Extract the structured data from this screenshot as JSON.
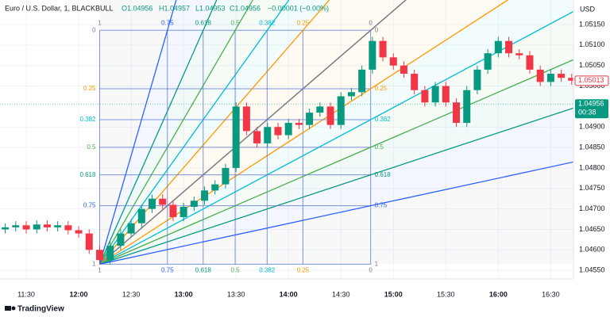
{
  "header": {
    "symbol": "Euro / U.S. Dollar, 1, BLACKBULL",
    "open": "O1.04956",
    "high": "H1.04957",
    "low": "L1.04953",
    "close": "C1.04956",
    "change": "−0.00001 (−0.00%)"
  },
  "footer": {
    "brand": "TradingView"
  },
  "chart_data": {
    "type": "candlestick",
    "currency": "USD",
    "grid": true,
    "up_color": "#089981",
    "down_color": "#f23645",
    "xlim": [
      675,
      1003
    ],
    "ylim": [
      1.04529,
      1.0521
    ],
    "xticks": [
      {
        "value": 690,
        "label": "11:30"
      },
      {
        "value": 720,
        "label": "12:00"
      },
      {
        "value": 750,
        "label": "12:30"
      },
      {
        "value": 780,
        "label": "13:00"
      },
      {
        "value": 810,
        "label": "13:30"
      },
      {
        "value": 840,
        "label": "14:00"
      },
      {
        "value": 870,
        "label": "14:30"
      },
      {
        "value": 900,
        "label": "15:00"
      },
      {
        "value": 930,
        "label": "15:30"
      },
      {
        "value": 960,
        "label": "16:00"
      },
      {
        "value": 990,
        "label": "16:30"
      }
    ],
    "yticks": [
      {
        "value": 1.0515,
        "label": "1.05150"
      },
      {
        "value": 1.051,
        "label": "1.05100"
      },
      {
        "value": 1.0505,
        "label": "1.05050"
      },
      {
        "value": 1.05,
        "label": "1.05000"
      },
      {
        "value": 1.049,
        "label": "1.04900"
      },
      {
        "value": 1.0485,
        "label": "1.04850"
      },
      {
        "value": 1.048,
        "label": "1.04800"
      },
      {
        "value": 1.0475,
        "label": "1.04750"
      },
      {
        "value": 1.047,
        "label": "1.04700"
      },
      {
        "value": 1.0465,
        "label": "1.04650"
      },
      {
        "value": 1.046,
        "label": "1.04600"
      },
      {
        "value": 1.0455,
        "label": "1.04550"
      }
    ],
    "x": [
      678,
      684,
      690,
      696,
      702,
      708,
      714,
      720,
      726,
      732,
      738,
      744,
      750,
      756,
      762,
      768,
      774,
      780,
      786,
      792,
      798,
      804,
      810,
      816,
      822,
      828,
      834,
      840,
      846,
      852,
      858,
      864,
      870,
      876,
      882,
      888,
      894,
      900,
      906,
      912,
      918,
      924,
      930,
      936,
      942,
      948,
      954,
      960,
      966,
      972,
      978,
      984,
      990,
      996,
      1002
    ],
    "open": [
      1.0465,
      1.04655,
      1.0466,
      1.0465,
      1.04662,
      1.04655,
      1.0466,
      1.04648,
      1.0464,
      1.046,
      1.04575,
      1.0461,
      1.0464,
      1.04665,
      1.047,
      1.04725,
      1.0471,
      1.0468,
      1.04705,
      1.0472,
      1.04745,
      1.0476,
      1.048,
      1.0495,
      1.0489,
      1.0486,
      1.049,
      1.0488,
      1.0491,
      1.04905,
      1.04935,
      1.0495,
      1.04905,
      1.04975,
      1.04985,
      1.0504,
      1.0511,
      1.0507,
      1.0505,
      1.0503,
      1.0499,
      1.0496,
      1.05,
      1.0496,
      1.0491,
      1.0499,
      1.0504,
      1.0508,
      1.0511,
      1.0508,
      1.05075,
      1.0504,
      1.0501,
      1.0503,
      1.0502
    ],
    "high": [
      1.04665,
      1.0467,
      1.0467,
      1.04672,
      1.04672,
      1.0467,
      1.0467,
      1.04658,
      1.0465,
      1.0461,
      1.0462,
      1.0465,
      1.04675,
      1.0471,
      1.04735,
      1.04735,
      1.0472,
      1.04715,
      1.0473,
      1.04755,
      1.0477,
      1.0481,
      1.0496,
      1.0496,
      1.049,
      1.0491,
      1.0491,
      1.0492,
      1.0492,
      1.04945,
      1.0496,
      1.0496,
      1.04985,
      1.04995,
      1.0505,
      1.0512,
      1.0512,
      1.0508,
      1.0506,
      1.0504,
      1.05,
      1.0501,
      1.0501,
      1.0497,
      1.05,
      1.0505,
      1.0509,
      1.0512,
      1.0512,
      1.0509,
      1.05085,
      1.0505,
      1.0504,
      1.0504,
      1.0503
    ],
    "low": [
      1.0464,
      1.04645,
      1.0464,
      1.0464,
      1.04645,
      1.04645,
      1.04638,
      1.0463,
      1.0459,
      1.04565,
      1.04565,
      1.046,
      1.0463,
      1.04655,
      1.0469,
      1.047,
      1.0467,
      1.0467,
      1.04695,
      1.0471,
      1.04735,
      1.0475,
      1.0479,
      1.0488,
      1.0485,
      1.0485,
      1.0487,
      1.0487,
      1.04895,
      1.04895,
      1.04925,
      1.04895,
      1.04895,
      1.04965,
      1.04975,
      1.0503,
      1.0506,
      1.0504,
      1.0502,
      1.0498,
      1.0495,
      1.0495,
      1.0495,
      1.049,
      1.049,
      1.0498,
      1.0503,
      1.0507,
      1.0507,
      1.05065,
      1.0503,
      1.05,
      1.05,
      1.0501,
      1.05003
    ],
    "close": [
      1.04655,
      1.0466,
      1.0465,
      1.04662,
      1.04655,
      1.0466,
      1.04648,
      1.0464,
      1.046,
      1.04575,
      1.0461,
      1.0464,
      1.04665,
      1.047,
      1.04725,
      1.0471,
      1.0468,
      1.04705,
      1.0472,
      1.04745,
      1.0476,
      1.048,
      1.0495,
      1.0489,
      1.0486,
      1.049,
      1.0488,
      1.0491,
      1.04905,
      1.04935,
      1.0495,
      1.04905,
      1.04975,
      1.04985,
      1.0504,
      1.0511,
      1.0507,
      1.0505,
      1.0503,
      1.0499,
      1.0496,
      1.05,
      1.0496,
      1.0491,
      1.0499,
      1.0504,
      1.0508,
      1.0511,
      1.0508,
      1.05075,
      1.0504,
      1.0501,
      1.0503,
      1.0502,
      1.05013
    ],
    "fan": {
      "start_x": 732,
      "start_y": 1.04565,
      "end_x": 887,
      "end_y": 1.05136,
      "levels": [
        {
          "value": 0,
          "color": "#787b86"
        },
        {
          "value": 0.25,
          "color": "#ff9800"
        },
        {
          "value": 0.382,
          "color": "#00bcd4"
        },
        {
          "value": 0.5,
          "color": "#4caf50"
        },
        {
          "value": 0.618,
          "color": "#089981"
        },
        {
          "value": 0.75,
          "color": "#2962ff"
        },
        {
          "value": 1,
          "color": "#787b86"
        }
      ]
    },
    "price_labels": [
      {
        "value": 1.05013,
        "label": "1.05013",
        "color": "#f23645"
      },
      {
        "value": 1.04956,
        "label": "1.04956",
        "timer": "00:38",
        "color": "#089981"
      }
    ]
  }
}
